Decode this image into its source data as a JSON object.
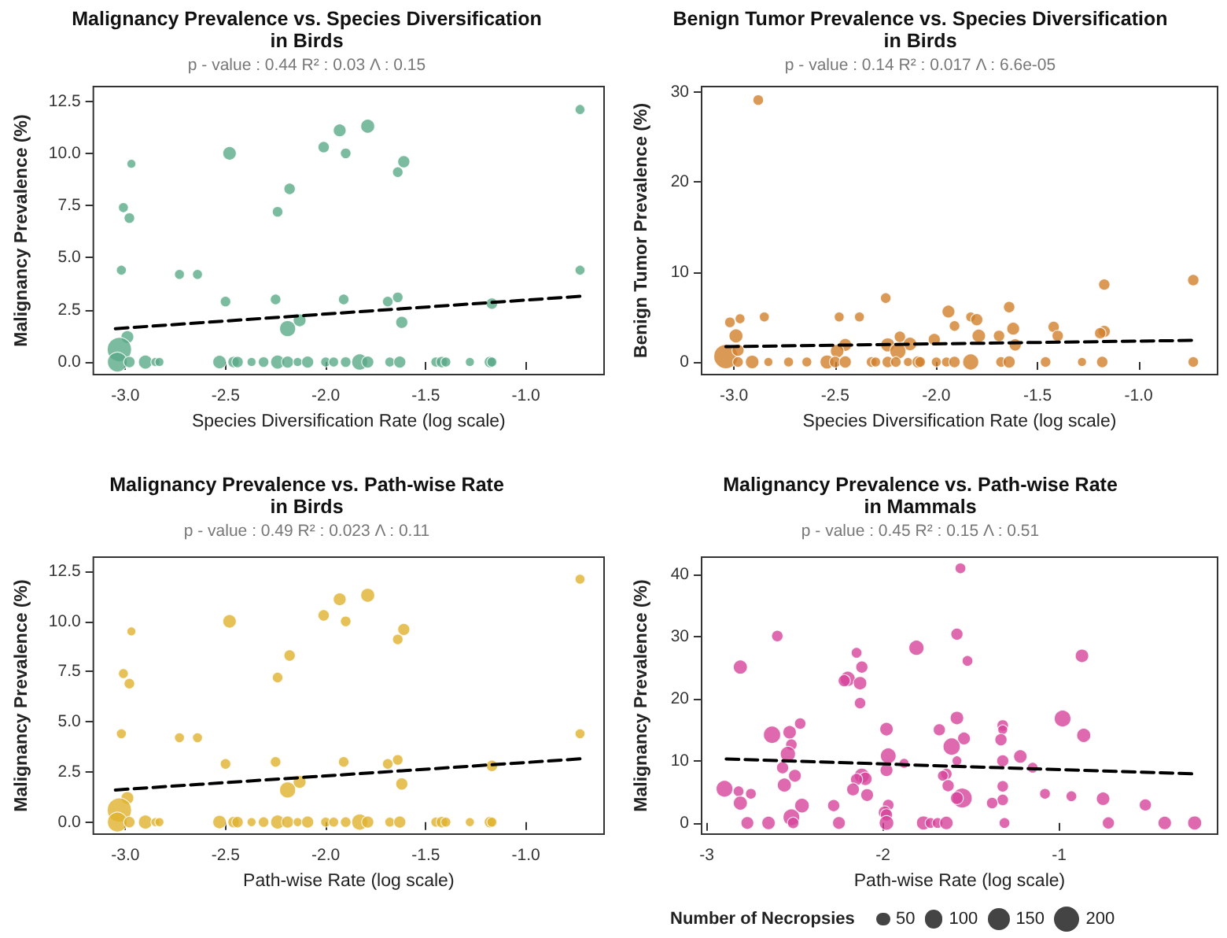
{
  "chart_data": [
    {
      "type": "bubble",
      "title": "Malignancy Prevalence vs. Species Diversification\nin Birds",
      "subtitle": "p - value : 0.44 R² : 0.03 Λ : 0.15",
      "xlabel": "Species Diversification Rate (log scale)",
      "ylabel": "Malignancy Prevalence (%)",
      "xlim": [
        -3.16,
        -0.61
      ],
      "ylim": [
        -0.6,
        13.2
      ],
      "xticks": [
        {
          "value": -3,
          "label": "-3.0"
        },
        {
          "value": -2.5,
          "label": "-2.5"
        },
        {
          "value": -2,
          "label": "-2.0"
        },
        {
          "value": -1.5,
          "label": "-1.5"
        },
        {
          "value": -1,
          "label": "-1.0"
        }
      ],
      "yticks": [
        {
          "value": 0,
          "label": "0.0"
        },
        {
          "value": 2.5,
          "label": "2.5"
        },
        {
          "value": 5,
          "label": "5.0"
        },
        {
          "value": 7.5,
          "label": "7.5"
        },
        {
          "value": 10,
          "label": "10.0"
        },
        {
          "value": 12.5,
          "label": "12.5"
        }
      ],
      "series": [
        {
          "type": "bubble",
          "color": "#5aaa88",
          "x": [
            -0.73,
            -1.79,
            -1.93,
            -2.01,
            -1.9,
            -2.48,
            -1.61,
            -1.64,
            -2.97,
            -2.18,
            -2.24,
            -3.01,
            -2.98,
            -3.02,
            -2.73,
            -2.64,
            -0.73,
            -2.5,
            -2.25,
            -1.91,
            -1.69,
            -1.64,
            -1.17,
            -2.13,
            -2.19,
            -1.62,
            -2.99,
            -3.03,
            -3.04,
            -2.98,
            -2.9,
            -2.85,
            -2.83,
            -2.53,
            -2.46,
            -2.44,
            -2.37,
            -2.31,
            -2.24,
            -2.19,
            -2.14,
            -2.09,
            -2.0,
            -1.96,
            -1.9,
            -1.83,
            -1.79,
            -1.68,
            -1.63,
            -1.45,
            -1.42,
            -1.4,
            -1.28,
            -1.18,
            -1.17
          ],
          "values": [
            12.1,
            11.3,
            11.1,
            10.3,
            10.0,
            10.0,
            9.6,
            9.1,
            9.5,
            8.3,
            7.2,
            7.4,
            6.9,
            4.4,
            4.2,
            4.2,
            4.4,
            2.9,
            3.0,
            3.0,
            2.9,
            3.1,
            2.8,
            2.0,
            1.6,
            1.9,
            1.2,
            0.6,
            0,
            0,
            0,
            0,
            0,
            0,
            0,
            0,
            0,
            0,
            0,
            0,
            0,
            0,
            0,
            0,
            0,
            0,
            0,
            0,
            0,
            0,
            0,
            0,
            0,
            0,
            0
          ],
          "sizes": [
            0.17,
            0.33,
            0.28,
            0.22,
            0.19,
            0.31,
            0.25,
            0.19,
            0.14,
            0.22,
            0.19,
            0.17,
            0.19,
            0.17,
            0.17,
            0.17,
            0.17,
            0.19,
            0.19,
            0.19,
            0.19,
            0.19,
            0.22,
            0.28,
            0.44,
            0.25,
            0.28,
            1,
            0.67,
            0.22,
            0.33,
            0.14,
            0.14,
            0.31,
            0.22,
            0.22,
            0.14,
            0.19,
            0.33,
            0.25,
            0.14,
            0.25,
            0.17,
            0.17,
            0.19,
            0.44,
            0.25,
            0.17,
            0.25,
            0.17,
            0.22,
            0.17,
            0.14,
            0.22,
            0.17
          ]
        },
        {
          "type": "line",
          "color": "#000000",
          "line_style": "dashed",
          "marker": "none",
          "x": [
            -3.05,
            -0.73
          ],
          "values": [
            1.6,
            3.15
          ]
        }
      ]
    },
    {
      "type": "bubble",
      "title": "Benign Tumor Prevalence vs. Species Diversification\nin Birds",
      "subtitle": "p - value : 0.14 R² : 0.017 Λ : 6.6e-05",
      "xlabel": "Species Diversification Rate (log scale)",
      "ylabel": "Benign Tumor Prevalence (%)",
      "xlim": [
        -3.16,
        -0.61
      ],
      "ylim": [
        -1.4,
        30.6
      ],
      "xticks": [
        {
          "value": -3,
          "label": "-3.0"
        },
        {
          "value": -2.5,
          "label": "-2.5"
        },
        {
          "value": -2,
          "label": "-2.0"
        },
        {
          "value": -1.5,
          "label": "-1.5"
        },
        {
          "value": -1,
          "label": "-1.0"
        }
      ],
      "yticks": [
        0,
        10,
        20,
        30
      ],
      "series": [
        {
          "type": "bubble",
          "color": "#d27f2c",
          "x": [
            -2.88,
            -0.73,
            -1.17,
            -2.25,
            -1.64,
            -1.94,
            -1.91,
            -1.83,
            -1.8,
            -2.85,
            -2.48,
            -2.38,
            -3.02,
            -2.97,
            -2.99,
            -1.42,
            -1.4,
            -1.17,
            -1.19,
            -1.62,
            -1.69,
            -1.79,
            -1.61,
            -2.01,
            -2.18,
            -2.13,
            -2.24,
            -2.19,
            -2.45,
            -2.49,
            -3.04,
            -2.98,
            -2.98,
            -2.91,
            -2.83,
            -2.73,
            -2.64,
            -2.54,
            -2.5,
            -2.45,
            -2.32,
            -2.3,
            -2.24,
            -2.2,
            -2.14,
            -2.09,
            -2.08,
            -2.0,
            -1.95,
            -1.91,
            -1.83,
            -1.68,
            -1.64,
            -1.46,
            -1.28,
            -1.18,
            -0.73
          ],
          "values": [
            29.1,
            9.1,
            8.6,
            7.1,
            6.1,
            5.6,
            4.0,
            5.0,
            4.7,
            5.0,
            5.0,
            5.0,
            4.4,
            4.8,
            2.9,
            3.9,
            2.9,
            3.4,
            3.2,
            3.7,
            2.9,
            2.9,
            1.9,
            2.5,
            2.8,
            2.0,
            1.9,
            1.2,
            1.9,
            1.2,
            0.6,
            1.3,
            0,
            0,
            0,
            0,
            0,
            0,
            0,
            0,
            0,
            0,
            0,
            0,
            0,
            0,
            0,
            0,
            0,
            0,
            0,
            0,
            0,
            0,
            0,
            0,
            0
          ],
          "sizes": [
            0.19,
            0.22,
            0.22,
            0.19,
            0.22,
            0.28,
            0.19,
            0.17,
            0.25,
            0.17,
            0.17,
            0.17,
            0.19,
            0.17,
            0.33,
            0.22,
            0.22,
            0.25,
            0.22,
            0.28,
            0.22,
            0.31,
            0.25,
            0.25,
            0.22,
            0.31,
            0.33,
            0.44,
            0.28,
            0.31,
            1,
            0.25,
            0.19,
            0.31,
            0.14,
            0.17,
            0.17,
            0.33,
            0.22,
            0.25,
            0.19,
            0.17,
            0.22,
            0.19,
            0.14,
            0.25,
            0.19,
            0.17,
            0.17,
            0.22,
            0.44,
            0.19,
            0.25,
            0.19,
            0.14,
            0.22,
            0.19
          ]
        },
        {
          "type": "line",
          "color": "#000000",
          "line_style": "dashed",
          "marker": "none",
          "x": [
            -3.04,
            -0.73
          ],
          "values": [
            1.7,
            2.4
          ]
        }
      ]
    },
    {
      "type": "bubble",
      "title": "Malignancy Prevalence vs. Path-wise Rate\nin Birds",
      "subtitle": "p - value : 0.49 R² : 0.023 Λ : 0.11",
      "xlabel": "Path-wise Rate (log scale)",
      "ylabel": "Malignancy Prevalence (%)",
      "xlim": [
        -3.16,
        -0.61
      ],
      "ylim": [
        -0.6,
        13.2
      ],
      "xticks": [
        {
          "value": -3,
          "label": "-3.0"
        },
        {
          "value": -2.5,
          "label": "-2.5"
        },
        {
          "value": -2,
          "label": "-2.0"
        },
        {
          "value": -1.5,
          "label": "-1.5"
        },
        {
          "value": -1,
          "label": "-1.0"
        }
      ],
      "yticks": [
        {
          "value": 0,
          "label": "0.0"
        },
        {
          "value": 2.5,
          "label": "2.5"
        },
        {
          "value": 5,
          "label": "5.0"
        },
        {
          "value": 7.5,
          "label": "7.5"
        },
        {
          "value": 10,
          "label": "10.0"
        },
        {
          "value": 12.5,
          "label": "12.5"
        }
      ],
      "series": [
        {
          "type": "bubble",
          "color": "#e0b22e",
          "x": [
            -0.73,
            -1.79,
            -1.93,
            -2.01,
            -1.9,
            -2.48,
            -1.61,
            -1.64,
            -2.97,
            -2.18,
            -2.24,
            -3.01,
            -2.98,
            -3.02,
            -2.73,
            -2.64,
            -0.73,
            -2.5,
            -2.25,
            -1.91,
            -1.69,
            -1.64,
            -1.17,
            -2.13,
            -2.19,
            -1.62,
            -2.99,
            -3.03,
            -3.04,
            -2.98,
            -2.9,
            -2.85,
            -2.83,
            -2.53,
            -2.46,
            -2.44,
            -2.37,
            -2.31,
            -2.24,
            -2.19,
            -2.14,
            -2.09,
            -2.0,
            -1.96,
            -1.9,
            -1.83,
            -1.79,
            -1.68,
            -1.63,
            -1.45,
            -1.42,
            -1.4,
            -1.28,
            -1.18,
            -1.17
          ],
          "values": [
            12.1,
            11.3,
            11.1,
            10.3,
            10.0,
            10.0,
            9.6,
            9.1,
            9.5,
            8.3,
            7.2,
            7.4,
            6.9,
            4.4,
            4.2,
            4.2,
            4.4,
            2.9,
            3.0,
            3.0,
            2.9,
            3.1,
            2.8,
            2.0,
            1.6,
            1.9,
            1.2,
            0.6,
            0,
            0,
            0,
            0,
            0,
            0,
            0,
            0,
            0,
            0,
            0,
            0,
            0,
            0,
            0,
            0,
            0,
            0,
            0,
            0,
            0,
            0,
            0,
            0,
            0,
            0,
            0
          ],
          "sizes": [
            0.17,
            0.33,
            0.28,
            0.22,
            0.19,
            0.31,
            0.25,
            0.19,
            0.14,
            0.22,
            0.19,
            0.17,
            0.19,
            0.17,
            0.17,
            0.17,
            0.17,
            0.19,
            0.19,
            0.19,
            0.19,
            0.19,
            0.22,
            0.28,
            0.44,
            0.25,
            0.28,
            1,
            0.67,
            0.22,
            0.33,
            0.14,
            0.14,
            0.31,
            0.22,
            0.22,
            0.14,
            0.19,
            0.33,
            0.25,
            0.14,
            0.25,
            0.17,
            0.17,
            0.19,
            0.44,
            0.25,
            0.17,
            0.25,
            0.17,
            0.22,
            0.17,
            0.14,
            0.22,
            0.17
          ]
        },
        {
          "type": "line",
          "color": "#000000",
          "line_style": "dashed",
          "marker": "none",
          "x": [
            -3.05,
            -0.73
          ],
          "values": [
            1.6,
            3.15
          ]
        }
      ]
    },
    {
      "type": "bubble",
      "title": "Malignancy Prevalence vs. Path-wise Rate\nin Mammals",
      "subtitle": "p - value : 0.45 R² : 0.15 Λ : 0.51",
      "xlabel": "Path-wise Rate (log scale)",
      "ylabel": "Malignancy Prevalence (%)",
      "xlim": [
        -3.03,
        -0.1
      ],
      "ylim": [
        -1.8,
        42.8
      ],
      "xticks": [
        -3,
        -2,
        -1
      ],
      "yticks": [
        0,
        10,
        20,
        30,
        40
      ],
      "legend_title": "Number of Necropsies",
      "size_legend": [
        50,
        100,
        150,
        200
      ],
      "series": [
        {
          "type": "bubble",
          "color": "#d6449a",
          "x": [
            -1.56,
            -1.58,
            -2.6,
            -1.81,
            -2.15,
            -0.87,
            -1.52,
            -2.81,
            -2.12,
            -2.2,
            -2.22,
            -2.13,
            -2.13,
            -1.58,
            -0.98,
            -2.47,
            -1.32,
            -1.32,
            -1.98,
            -1.68,
            -2.63,
            -2.53,
            -0.86,
            -1.54,
            -1.33,
            -2.52,
            -1.61,
            -2.54,
            -1.97,
            -1.22,
            -1.32,
            -1.58,
            -1.88,
            -2.57,
            -1.98,
            -1.15,
            -2.5,
            -1.64,
            -1.66,
            -2.12,
            -2.1,
            -2.15,
            -2.56,
            -1.63,
            -1.32,
            -2.17,
            -2.09,
            -2.9,
            -2.82,
            -2.75,
            -1.08,
            -0.93,
            -0.75,
            -1.55,
            -1.58,
            -1.32,
            -2.81,
            -1.38,
            -0.51,
            -2.46,
            -2.28,
            -1.97,
            -1.99,
            -1.98,
            -2.52,
            -2.51,
            -2.77,
            -2.65,
            -2.25,
            -1.98,
            -1.77,
            -1.73,
            -1.69,
            -1.64,
            -1.31,
            -0.72,
            -0.4,
            -0.23
          ],
          "values": [
            41.0,
            30.4,
            30.1,
            28.2,
            27.4,
            26.9,
            26.1,
            25.1,
            25.1,
            23.2,
            22.9,
            22.5,
            19.3,
            16.9,
            16.8,
            16.0,
            15.7,
            15.0,
            15.1,
            15.0,
            14.2,
            14.6,
            14.1,
            13.6,
            13.4,
            12.6,
            12.3,
            11.1,
            10.8,
            10.7,
            10.0,
            10.0,
            9.6,
            8.9,
            8.5,
            8.9,
            7.6,
            7.9,
            7.6,
            7.6,
            7.1,
            7.0,
            6.1,
            6.0,
            5.9,
            5.4,
            4.5,
            5.5,
            5.1,
            4.7,
            4.7,
            4.3,
            3.9,
            4.0,
            4.0,
            3.7,
            3.2,
            3.2,
            2.9,
            2.8,
            2.8,
            2.9,
            1.7,
            1.3,
            0.9,
            0,
            0,
            0,
            0,
            0,
            0,
            0,
            0,
            0,
            0,
            0,
            0,
            0
          ],
          "sizes": [
            35,
            45,
            40,
            70,
            35,
            55,
            35,
            60,
            45,
            70,
            45,
            55,
            40,
            55,
            85,
            40,
            40,
            30,
            55,
            45,
            90,
            55,
            60,
            50,
            45,
            40,
            90,
            70,
            75,
            55,
            45,
            30,
            30,
            45,
            50,
            35,
            50,
            40,
            35,
            70,
            55,
            45,
            60,
            45,
            40,
            50,
            50,
            85,
            35,
            35,
            35,
            35,
            55,
            120,
            50,
            40,
            60,
            40,
            45,
            65,
            45,
            40,
            50,
            45,
            85,
            40,
            50,
            55,
            50,
            65,
            60,
            35,
            35,
            55,
            35,
            45,
            55,
            60
          ]
        },
        {
          "type": "line",
          "color": "#000000",
          "line_style": "dashed",
          "marker": "none",
          "x": [
            -2.89,
            -0.23
          ],
          "values": [
            10.3,
            7.9
          ]
        }
      ]
    }
  ]
}
